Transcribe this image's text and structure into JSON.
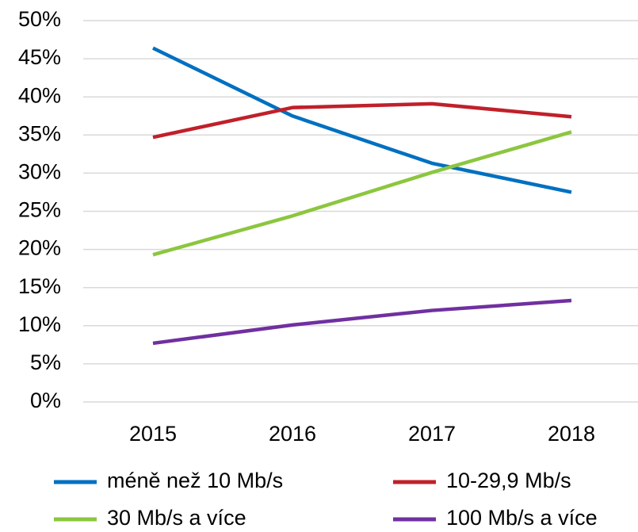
{
  "chart_data": {
    "type": "line",
    "categories": [
      "2015",
      "2016",
      "2017",
      "2018"
    ],
    "series": [
      {
        "name": "méně než 10 Mb/s",
        "color": "#0070c0",
        "values": [
          46.4,
          37.5,
          31.3,
          27.5
        ]
      },
      {
        "name": "10-29,9 Mb/s",
        "color": "#c0202a",
        "values": [
          34.7,
          38.6,
          39.1,
          37.4
        ]
      },
      {
        "name": "30 Mb/s a více",
        "color": "#8cc63f",
        "values": [
          19.3,
          24.4,
          30.1,
          35.4
        ]
      },
      {
        "name": "100 Mb/s a více",
        "color": "#7030a0",
        "values": [
          7.7,
          10.1,
          12.0,
          13.3
        ]
      }
    ],
    "ylim": [
      0,
      50
    ],
    "yticks": [
      {
        "value": 0,
        "label": "0%"
      },
      {
        "value": 5,
        "label": "5%"
      },
      {
        "value": 10,
        "label": "10%"
      },
      {
        "value": 15,
        "label": "15%"
      },
      {
        "value": 20,
        "label": "20%"
      },
      {
        "value": 25,
        "label": "25%"
      },
      {
        "value": 30,
        "label": "30%"
      },
      {
        "value": 35,
        "label": "35%"
      },
      {
        "value": 40,
        "label": "40%"
      },
      {
        "value": 45,
        "label": "45%"
      },
      {
        "value": 50,
        "label": "50%"
      }
    ],
    "grid": true
  }
}
